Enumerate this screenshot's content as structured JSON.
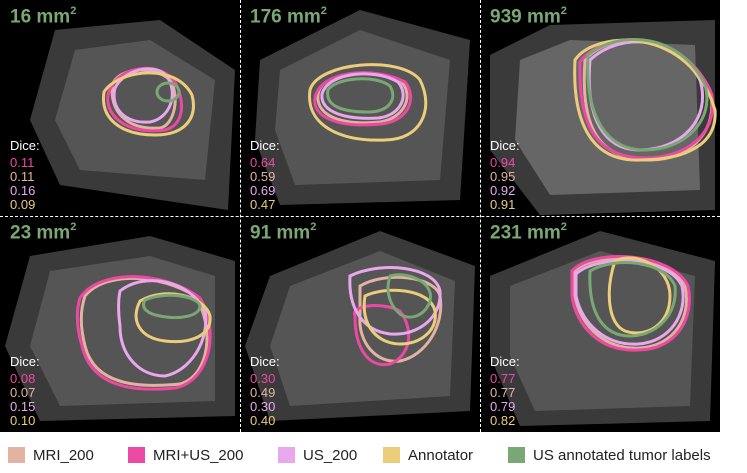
{
  "colors": {
    "mri_200": "#e3b3a1",
    "mri_us_200": "#ec4aa2",
    "us_200": "#e9a8ee",
    "annotator": "#ebcd7b",
    "us_annotated": "#7aa874",
    "area_text": "#7aa874"
  },
  "panels": [
    {
      "area": "16 mm",
      "unit_sup": "2",
      "dice_label": "Dice:",
      "dice": [
        "0.11",
        "0.11",
        "0.16",
        "0.09"
      ]
    },
    {
      "area": "176 mm",
      "unit_sup": "2",
      "dice_label": "Dice:",
      "dice": [
        "0.64",
        "0.59",
        "0.69",
        "0.47"
      ]
    },
    {
      "area": "939 mm",
      "unit_sup": "2",
      "dice_label": "Dice:",
      "dice": [
        "0.94",
        "0.95",
        "0.92",
        "0.91"
      ]
    },
    {
      "area": "23 mm",
      "unit_sup": "2",
      "dice_label": "Dice:",
      "dice": [
        "0.08",
        "0.07",
        "0.15",
        "0.10"
      ]
    },
    {
      "area": "91 mm",
      "unit_sup": "2",
      "dice_label": "Dice:",
      "dice": [
        "0.30",
        "0.49",
        "0.30",
        "0.40"
      ]
    },
    {
      "area": "231 mm",
      "unit_sup": "2",
      "dice_label": "Dice:",
      "dice": [
        "0.77",
        "0.77",
        "0.79",
        "0.82"
      ]
    }
  ],
  "legend": [
    {
      "label": "MRI_200",
      "color": "#e3b3a1"
    },
    {
      "label": "MRI+US_200",
      "color": "#ec4aa2"
    },
    {
      "label": "US_200",
      "color": "#e9a8ee"
    },
    {
      "label": "Annotator",
      "color": "#ebcd7b"
    },
    {
      "label": "US annotated tumor labels",
      "color": "#7aa874"
    }
  ]
}
